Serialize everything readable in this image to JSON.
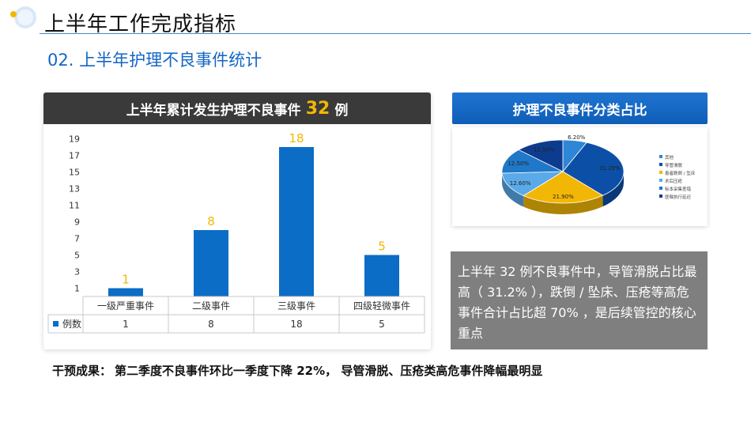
{
  "header": {
    "title": "上半年工作完成指标",
    "subtitle": "02. 上半年护理不良事件统计"
  },
  "bar_panel": {
    "title_prefix": "上半年累计发生护理不良事件",
    "title_number": "32",
    "title_suffix": "例"
  },
  "pie_panel": {
    "title": "护理不良事件分类占比"
  },
  "note": {
    "text": "上半年 32 例不良事件中，导管滑脱占比最高（ 31.2% ），跌倒 / 坠床、压疮等高危事件合计占比超 70% ，是后续管控的核心重点"
  },
  "footer": {
    "label": "干预成果：",
    "text": "第二季度不良事件环比一季度下降 22%， 导管滑脱、压疮类高危事件降幅最明显"
  },
  "colors": {
    "accent_blue": "#1466c4",
    "bar_blue": "#0b6dc6",
    "label_gold": "#f2b705",
    "header_dark": "#3a3a3a",
    "note_gray": "#7f7f7f"
  },
  "chart_data": [
    {
      "type": "bar",
      "categories": [
        "一级严重事件",
        "二级事件",
        "三级事件",
        "四级轻微事件"
      ],
      "series": [
        {
          "name": "例数",
          "values": [
            1,
            8,
            18,
            5
          ]
        }
      ],
      "yticks": [
        1,
        3,
        5,
        7,
        9,
        11,
        13,
        15,
        17,
        19
      ],
      "ylim": [
        0,
        19
      ],
      "legend": "data-table-left",
      "data_table": true
    },
    {
      "type": "pie",
      "labels": [
        "其他",
        "导管滑脱",
        "患者跌倒 / 坠床",
        "术后压疮",
        "标本采集差错",
        "医嘱执行延迟"
      ],
      "values": [
        6.2,
        31.2,
        21.9,
        12.6,
        12.5,
        12.5
      ],
      "value_labels": [
        "6.20%",
        "31.20%",
        "21.90%",
        "12.60%",
        "12.50%",
        "12.50%"
      ],
      "colors": [
        "#2e86d6",
        "#0c4fa6",
        "#f2b705",
        "#5aa9e8",
        "#1f78c8",
        "#0d3c8e"
      ],
      "legend": "right",
      "style": "3d"
    }
  ]
}
